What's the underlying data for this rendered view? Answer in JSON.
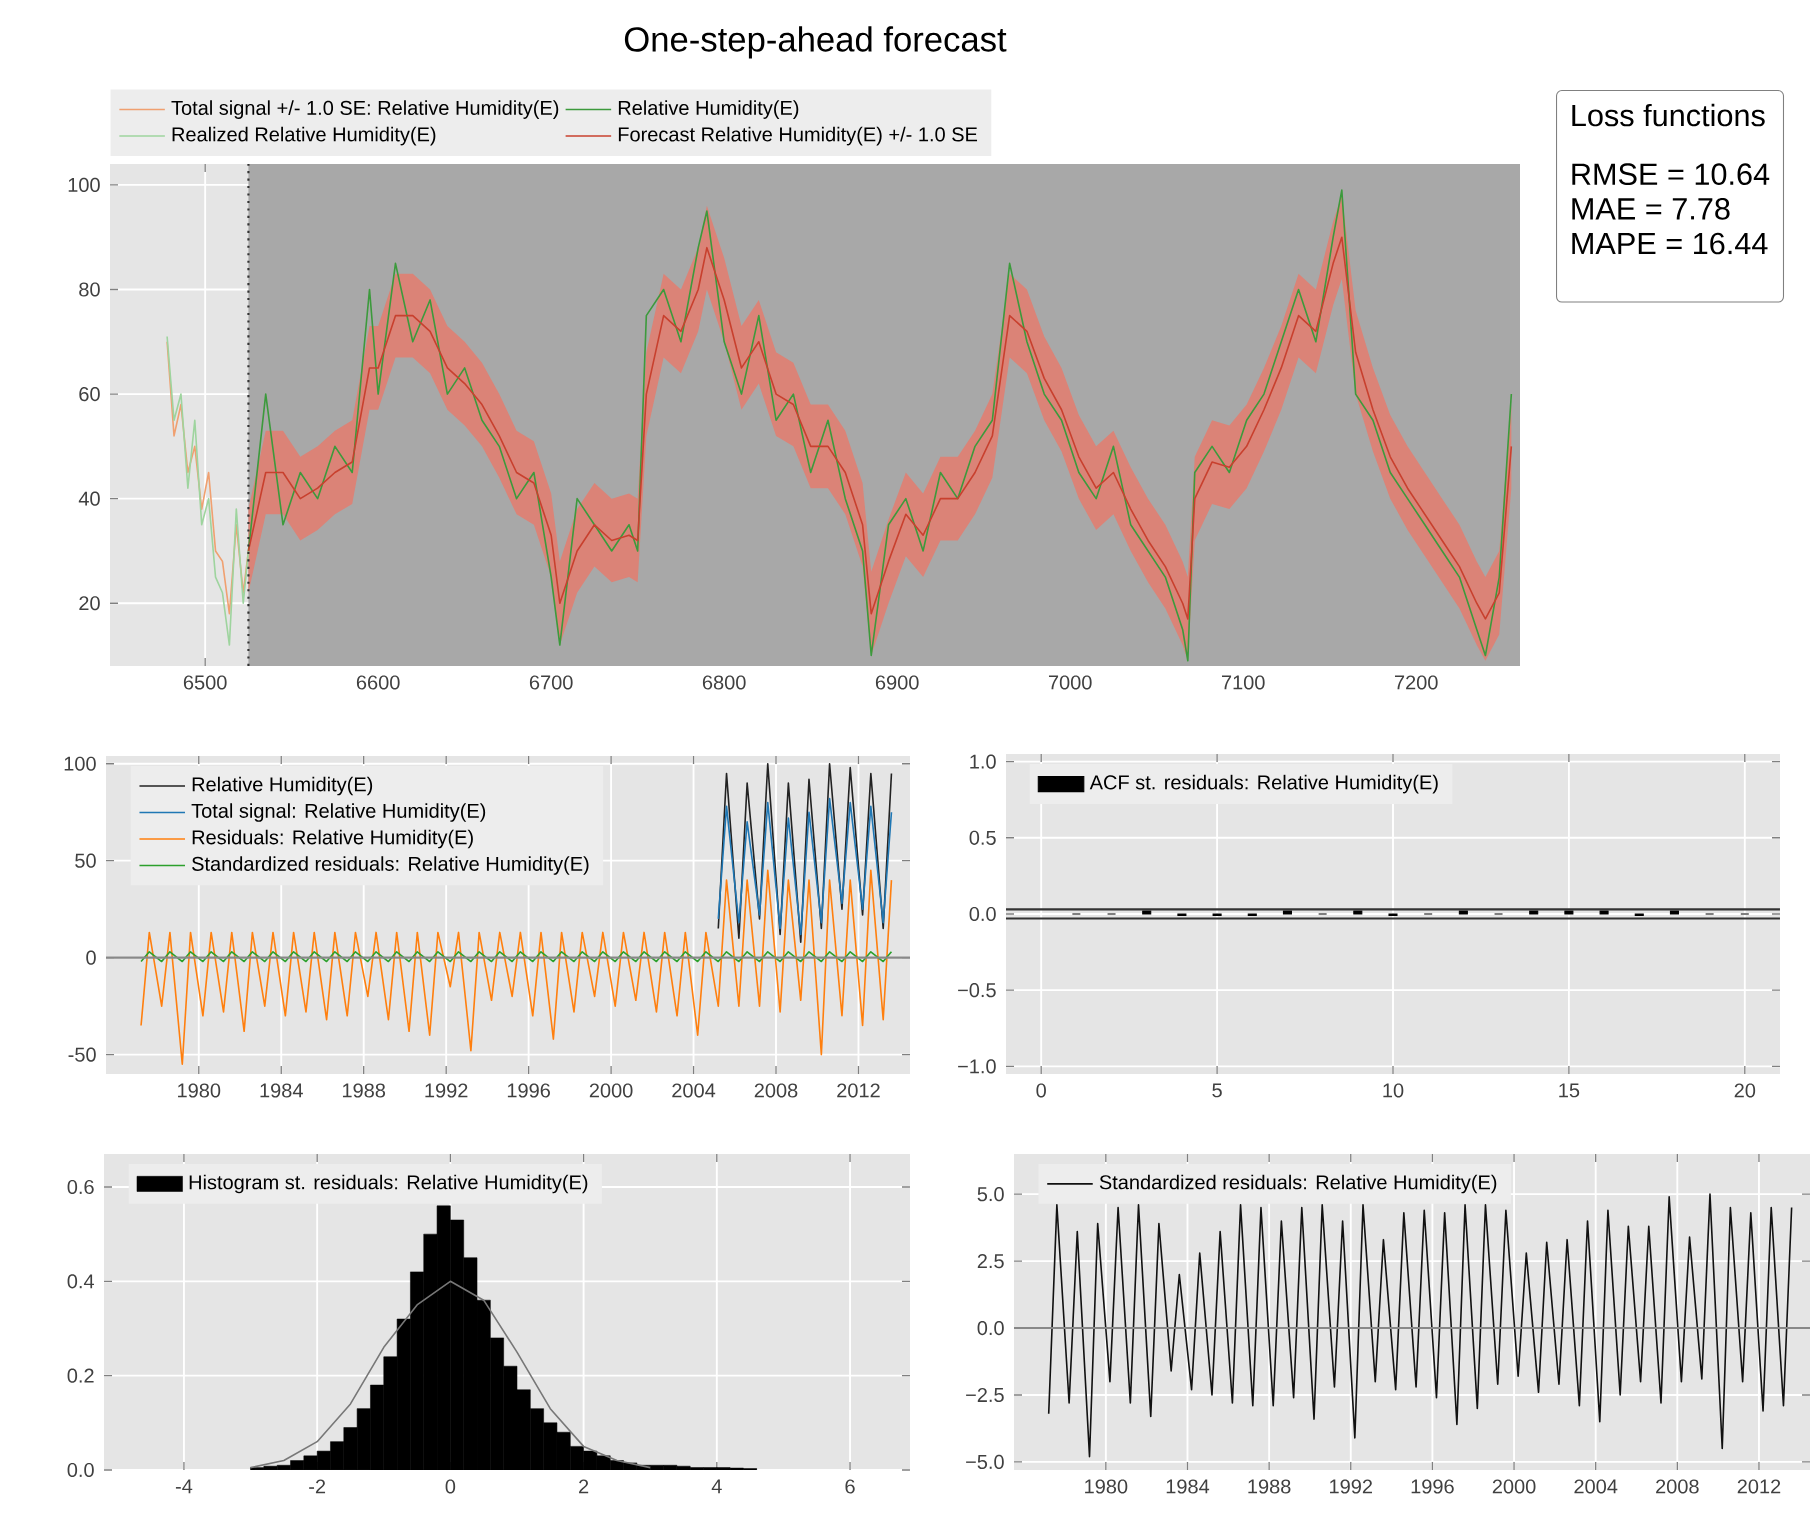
{
  "chart_data": [
    {
      "type": "line",
      "title": "One-step-ahead forecast",
      "xlim": [
        6445,
        7260
      ],
      "ylim": [
        8,
        104
      ],
      "xticks": [
        6500,
        6600,
        6700,
        6800,
        6900,
        7000,
        7100,
        7200
      ],
      "yticks": [
        20,
        40,
        60,
        80,
        100
      ],
      "grid": true,
      "legend": "top left",
      "bands": [
        {
          "axis": "x",
          "from": 6525,
          "to": 7260,
          "color": "#a8a8a8"
        }
      ],
      "ref_lines": [
        {
          "axis": "x",
          "value": 6525,
          "color": "#333333",
          "line_style": "dotted"
        }
      ],
      "series": [
        {
          "name": "Total signal +/- 1.0 SE: Relative Humidity(E)",
          "color": "#f0a070",
          "x": [
            6478,
            6482,
            6486,
            6490,
            6494,
            6498,
            6502,
            6506,
            6510,
            6514,
            6518,
            6522,
            6525
          ],
          "values": [
            70,
            52,
            58,
            45,
            50,
            38,
            45,
            30,
            28,
            18,
            35,
            22,
            30
          ]
        },
        {
          "name": "Relative Humidity(E)",
          "color": "#3c9a3c",
          "x": [
            6525,
            6535,
            6545,
            6555,
            6565,
            6575,
            6585,
            6595,
            6600,
            6610,
            6620,
            6630,
            6640,
            6650,
            6660,
            6670,
            6680,
            6690,
            6700,
            6705,
            6715,
            6725,
            6735,
            6745,
            6750,
            6755,
            6765,
            6775,
            6785,
            6790,
            6800,
            6810,
            6820,
            6830,
            6840,
            6850,
            6860,
            6870,
            6880,
            6885,
            6895,
            6905,
            6915,
            6925,
            6935,
            6945,
            6955,
            6965,
            6975,
            6985,
            6995,
            7005,
            7015,
            7025,
            7035,
            7045,
            7055,
            7065,
            7068,
            7072,
            7082,
            7092,
            7102,
            7112,
            7122,
            7132,
            7142,
            7152,
            7157,
            7165,
            7175,
            7185,
            7195,
            7205,
            7215,
            7225,
            7235,
            7240,
            7248,
            7255
          ],
          "values": [
            30,
            60,
            35,
            45,
            40,
            50,
            45,
            80,
            60,
            85,
            70,
            78,
            60,
            65,
            55,
            50,
            40,
            45,
            25,
            12,
            40,
            35,
            30,
            35,
            30,
            75,
            80,
            70,
            88,
            95,
            70,
            60,
            75,
            55,
            60,
            45,
            55,
            40,
            30,
            10,
            35,
            40,
            30,
            45,
            40,
            50,
            55,
            85,
            70,
            60,
            55,
            45,
            40,
            50,
            35,
            30,
            25,
            15,
            9,
            45,
            50,
            45,
            55,
            60,
            70,
            80,
            70,
            90,
            99,
            60,
            55,
            45,
            40,
            35,
            30,
            25,
            15,
            10,
            25,
            60
          ]
        },
        {
          "name": "Realized Relative Humidity(E)",
          "color": "#9ed49e",
          "x": [
            6478,
            6482,
            6486,
            6490,
            6494,
            6498,
            6502,
            6506,
            6510,
            6514,
            6518,
            6522,
            6525
          ],
          "values": [
            71,
            55,
            60,
            42,
            55,
            35,
            40,
            25,
            22,
            12,
            38,
            20,
            30
          ]
        },
        {
          "name": "Forecast Relative Humidity(E) +/- 1.0 SE",
          "color": "#c8402e",
          "x": [
            6525,
            6535,
            6545,
            6555,
            6565,
            6575,
            6585,
            6595,
            6600,
            6610,
            6620,
            6630,
            6640,
            6650,
            6660,
            6670,
            6680,
            6690,
            6700,
            6705,
            6715,
            6725,
            6735,
            6745,
            6750,
            6755,
            6765,
            6775,
            6785,
            6790,
            6800,
            6810,
            6820,
            6830,
            6840,
            6850,
            6860,
            6870,
            6880,
            6885,
            6895,
            6905,
            6915,
            6925,
            6935,
            6945,
            6955,
            6965,
            6975,
            6985,
            6995,
            7005,
            7015,
            7025,
            7035,
            7045,
            7055,
            7065,
            7068,
            7072,
            7082,
            7092,
            7102,
            7112,
            7122,
            7132,
            7142,
            7152,
            7157,
            7165,
            7175,
            7185,
            7195,
            7205,
            7215,
            7225,
            7235,
            7240,
            7248,
            7255
          ],
          "values": [
            30,
            45,
            45,
            40,
            42,
            45,
            47,
            65,
            65,
            75,
            75,
            72,
            65,
            62,
            58,
            52,
            45,
            43,
            33,
            20,
            30,
            35,
            32,
            33,
            32,
            60,
            75,
            72,
            80,
            88,
            78,
            65,
            70,
            60,
            58,
            50,
            50,
            45,
            35,
            18,
            28,
            37,
            33,
            40,
            40,
            45,
            52,
            75,
            72,
            63,
            57,
            48,
            42,
            45,
            38,
            32,
            27,
            20,
            17,
            40,
            47,
            46,
            50,
            57,
            65,
            75,
            72,
            85,
            90,
            68,
            57,
            48,
            42,
            37,
            32,
            27,
            20,
            17,
            22,
            50
          ],
          "lower": [
            22,
            37,
            37,
            32,
            34,
            37,
            39,
            57,
            57,
            67,
            67,
            64,
            57,
            54,
            50,
            44,
            37,
            35,
            25,
            12,
            22,
            27,
            24,
            25,
            24,
            52,
            67,
            64,
            72,
            80,
            70,
            57,
            62,
            52,
            50,
            42,
            42,
            37,
            27,
            10,
            20,
            29,
            25,
            32,
            32,
            37,
            44,
            67,
            64,
            55,
            49,
            40,
            34,
            37,
            30,
            24,
            19,
            12,
            9,
            32,
            39,
            38,
            42,
            49,
            57,
            67,
            64,
            77,
            82,
            60,
            49,
            40,
            34,
            29,
            24,
            19,
            12,
            9,
            14,
            42
          ],
          "upper": [
            38,
            53,
            53,
            48,
            50,
            53,
            55,
            73,
            73,
            83,
            83,
            80,
            73,
            70,
            66,
            60,
            53,
            51,
            41,
            28,
            38,
            43,
            40,
            41,
            40,
            68,
            83,
            80,
            88,
            96,
            86,
            73,
            78,
            68,
            66,
            58,
            58,
            53,
            43,
            26,
            36,
            45,
            41,
            48,
            48,
            53,
            60,
            83,
            80,
            71,
            65,
            56,
            50,
            53,
            46,
            40,
            35,
            28,
            25,
            48,
            55,
            54,
            58,
            65,
            73,
            83,
            80,
            93,
            98,
            76,
            65,
            56,
            50,
            45,
            40,
            35,
            28,
            25,
            30,
            58
          ]
        }
      ]
    },
    {
      "type": "other",
      "title": "Loss functions",
      "annotations": [
        "RMSE = 10.64",
        "MAE = 7.78",
        "MAPE = 16.44"
      ]
    },
    {
      "type": "line",
      "xlim": [
        1975.5,
        2014.5
      ],
      "ylim": [
        -60,
        104
      ],
      "xticks": [
        1980,
        1984,
        1988,
        1992,
        1996,
        2000,
        2004,
        2008,
        2012
      ],
      "yticks": [
        -50,
        0,
        50,
        100
      ],
      "grid": true,
      "legend": "top left",
      "ref_lines": [
        {
          "axis": "y",
          "value": 0,
          "color": "#888888"
        }
      ],
      "x": [
        1977.2,
        1977.6,
        1978.2,
        1978.6,
        1979.2,
        1979.6,
        1980.2,
        1980.6,
        1981.2,
        1981.6,
        1982.2,
        1982.6,
        1983.2,
        1983.6,
        1984.2,
        1984.6,
        1985.2,
        1985.6,
        1986.2,
        1986.6,
        1987.2,
        1987.6,
        1988.2,
        1988.6,
        1989.2,
        1989.6,
        1990.2,
        1990.6,
        1991.2,
        1991.6,
        1992.2,
        1992.6,
        1993.2,
        1993.6,
        1994.2,
        1994.6,
        1995.2,
        1995.6,
        1996.2,
        1996.6,
        1997.2,
        1997.6,
        1998.2,
        1998.6,
        1999.2,
        1999.6,
        2000.2,
        2000.6,
        2001.2,
        2001.6,
        2002.2,
        2002.6,
        2003.2,
        2003.6,
        2004.2,
        2004.6,
        2005.2,
        2005.6,
        2006.2,
        2006.6,
        2007.2,
        2007.6,
        2008.2,
        2008.6,
        2009.2,
        2009.6,
        2010.2,
        2010.6,
        2011.2,
        2011.6,
        2012.2,
        2012.6,
        2013.2,
        2013.6
      ],
      "series": [
        {
          "name": "Relative Humidity(E)",
          "color": "#222222",
          "x": [
            2005.2,
            2005.6,
            2006.2,
            2006.6,
            2007.2,
            2007.6,
            2008.2,
            2008.6,
            2009.2,
            2009.6,
            2010.2,
            2010.6,
            2011.2,
            2011.6,
            2012.2,
            2012.6,
            2013.2,
            2013.6
          ],
          "values": [
            15,
            95,
            10,
            90,
            20,
            100,
            12,
            90,
            8,
            92,
            15,
            100,
            25,
            98,
            22,
            95,
            15,
            95
          ]
        },
        {
          "name": "Total signal: Relative Humidity(E)",
          "color": "#1f77b4",
          "x": [
            2005.2,
            2005.6,
            2006.2,
            2006.6,
            2007.2,
            2007.6,
            2008.2,
            2008.6,
            2009.2,
            2009.6,
            2010.2,
            2010.6,
            2011.2,
            2011.6,
            2012.2,
            2012.6,
            2013.2,
            2013.6
          ],
          "values": [
            20,
            78,
            18,
            70,
            22,
            80,
            15,
            72,
            12,
            75,
            18,
            82,
            28,
            80,
            25,
            78,
            18,
            75
          ]
        },
        {
          "name": "Residuals: Relative Humidity(E)",
          "color": "#ff7f0e",
          "values": [
            -35,
            13,
            -25,
            13,
            -55,
            13,
            -30,
            13,
            -28,
            13,
            -38,
            13,
            -25,
            13,
            -30,
            13,
            -28,
            13,
            -32,
            13,
            -30,
            13,
            -20,
            13,
            -32,
            13,
            -38,
            13,
            -40,
            13,
            -15,
            13,
            -48,
            13,
            -22,
            13,
            -20,
            13,
            -30,
            13,
            -42,
            13,
            -28,
            13,
            -20,
            13,
            -25,
            13,
            -22,
            13,
            -28,
            13,
            -30,
            13,
            -40,
            13,
            -25,
            40,
            -25,
            40,
            -25,
            45,
            -28,
            40,
            -22,
            40,
            -50,
            40,
            -30,
            40,
            -35,
            45,
            -32,
            40
          ]
        },
        {
          "name": "Standardized residuals: Relative Humidity(E)",
          "color": "#2ca02c",
          "values": [
            -2,
            3,
            -2,
            3,
            -2,
            3,
            -2,
            3,
            -2,
            3,
            -2,
            3,
            -2,
            3,
            -2,
            3,
            -2,
            3,
            -2,
            3,
            -2,
            3,
            -2,
            3,
            -2,
            3,
            -2,
            3,
            -2,
            3,
            -2,
            3,
            -2,
            3,
            -2,
            3,
            -2,
            3,
            -2,
            3,
            -2,
            3,
            -2,
            3,
            -2,
            3,
            -2,
            3,
            -2,
            3,
            -2,
            3,
            -2,
            3,
            -2,
            3,
            -2,
            3,
            -2,
            3,
            -2,
            3,
            -2,
            3,
            -2,
            3,
            -2,
            3,
            -2,
            3,
            -2,
            3,
            -2,
            3
          ]
        }
      ]
    },
    {
      "type": "bar",
      "xlim": [
        -1,
        21
      ],
      "ylim": [
        -1.05,
        1.05
      ],
      "xticks": [
        0,
        5,
        10,
        15,
        20
      ],
      "yticks": [
        {
          "value": -1,
          "label": "−1.0"
        },
        {
          "value": -0.5,
          "label": "−0.5"
        },
        {
          "value": 0,
          "label": "0.0"
        },
        {
          "value": 0.5,
          "label": "0.5"
        },
        {
          "value": 1,
          "label": "1.0"
        }
      ],
      "grid": true,
      "legend": "top left",
      "ref_lines": [
        {
          "axis": "y",
          "value": 0.03,
          "color": "#333333"
        },
        {
          "axis": "y",
          "value": -0.03,
          "color": "#333333"
        }
      ],
      "series": [
        {
          "name": "ACF st. residuals: Relative Humidity(E)",
          "color": "#000000",
          "x": [
            1,
            2,
            3,
            4,
            5,
            6,
            7,
            8,
            9,
            10,
            11,
            12,
            13,
            14,
            15,
            16,
            17,
            18,
            19,
            20
          ],
          "values": [
            0,
            0,
            0.02,
            -0.01,
            -0.01,
            -0.01,
            0.02,
            0,
            0.02,
            -0.01,
            0,
            0.02,
            0,
            0.02,
            0.02,
            0.02,
            -0.01,
            0.02,
            0,
            0
          ]
        }
      ]
    },
    {
      "type": "histogram",
      "xlim": [
        -5.2,
        6.9
      ],
      "ylim": [
        0,
        0.67
      ],
      "xticks": [
        -4,
        -2,
        0,
        2,
        4,
        6
      ],
      "yticks": [
        {
          "value": 0,
          "label": "0.0"
        },
        {
          "value": 0.2,
          "label": "0.2"
        },
        {
          "value": 0.4,
          "label": "0.4"
        },
        {
          "value": 0.6,
          "label": "0.6"
        }
      ],
      "grid": true,
      "legend": "top left",
      "series": [
        {
          "name": "Histogram st. residuals: Relative Humidity(E)",
          "color": "#000000",
          "bins": [
            -3.0,
            -2.8,
            -2.6,
            -2.4,
            -2.2,
            -2.0,
            -1.8,
            -1.6,
            -1.4,
            -1.2,
            -1.0,
            -0.8,
            -0.6,
            -0.4,
            -0.2,
            0.0,
            0.2,
            0.4,
            0.6,
            0.8,
            1.0,
            1.2,
            1.4,
            1.6,
            1.8,
            2.0,
            2.2,
            2.4,
            2.6,
            2.8,
            3.0,
            3.2,
            3.4,
            3.6,
            3.8,
            4.0,
            4.2,
            4.4,
            4.6
          ],
          "values": [
            0.005,
            0.008,
            0.01,
            0.02,
            0.03,
            0.04,
            0.06,
            0.09,
            0.13,
            0.18,
            0.24,
            0.32,
            0.42,
            0.5,
            0.56,
            0.53,
            0.45,
            0.36,
            0.28,
            0.22,
            0.17,
            0.13,
            0.1,
            0.08,
            0.05,
            0.04,
            0.03,
            0.02,
            0.015,
            0.01,
            0.01,
            0.01,
            0.008,
            0.005,
            0.005,
            0.005,
            0.004,
            0.003
          ]
        },
        {
          "type": "line",
          "color": "#777777",
          "x": [
            -3,
            -2.5,
            -2,
            -1.5,
            -1,
            -0.5,
            0,
            0.5,
            1,
            1.5,
            2,
            2.5,
            3
          ],
          "values": [
            0.005,
            0.02,
            0.06,
            0.14,
            0.26,
            0.35,
            0.4,
            0.36,
            0.25,
            0.13,
            0.05,
            0.02,
            0.005
          ]
        }
      ]
    },
    {
      "type": "line",
      "xlim": [
        1975.5,
        2014.5
      ],
      "ylim": [
        -5.3,
        6.5
      ],
      "xticks": [
        1980,
        1984,
        1988,
        1992,
        1996,
        2000,
        2004,
        2008,
        2012
      ],
      "yticks": [
        {
          "value": -5,
          "label": "−5.0"
        },
        {
          "value": -2.5,
          "label": "−2.5"
        },
        {
          "value": 0,
          "label": "0.0"
        },
        {
          "value": 2.5,
          "label": "2.5"
        },
        {
          "value": 5,
          "label": "5.0"
        }
      ],
      "grid": true,
      "legend": "top left",
      "ref_lines": [
        {
          "axis": "y",
          "value": 0,
          "color": "#888888"
        }
      ],
      "x": [
        1977.2,
        1977.6,
        1978.2,
        1978.6,
        1979.2,
        1979.6,
        1980.2,
        1980.6,
        1981.2,
        1981.6,
        1982.2,
        1982.6,
        1983.2,
        1983.6,
        1984.2,
        1984.6,
        1985.2,
        1985.6,
        1986.2,
        1986.6,
        1987.2,
        1987.6,
        1988.2,
        1988.6,
        1989.2,
        1989.6,
        1990.2,
        1990.6,
        1991.2,
        1991.6,
        1992.2,
        1992.6,
        1993.2,
        1993.6,
        1994.2,
        1994.6,
        1995.2,
        1995.6,
        1996.2,
        1996.6,
        1997.2,
        1997.6,
        1998.2,
        1998.6,
        1999.2,
        1999.6,
        2000.2,
        2000.6,
        2001.2,
        2001.6,
        2002.2,
        2002.6,
        2003.2,
        2003.6,
        2004.2,
        2004.6,
        2005.2,
        2005.6,
        2006.2,
        2006.6,
        2007.2,
        2007.6,
        2008.2,
        2008.6,
        2009.2,
        2009.6,
        2010.2,
        2010.6,
        2011.2,
        2011.6,
        2012.2,
        2012.6,
        2013.2,
        2013.6
      ],
      "series": [
        {
          "name": "Standardized residuals: Relative Humidity(E)",
          "color": "#111111",
          "values": [
            -3.2,
            4.6,
            -2.8,
            3.6,
            -4.8,
            3.9,
            -2.0,
            4.5,
            -2.8,
            4.6,
            -3.3,
            3.9,
            -1.6,
            2.0,
            -2.3,
            2.8,
            -2.5,
            3.6,
            -2.8,
            4.6,
            -2.9,
            4.5,
            -2.9,
            4.0,
            -2.6,
            4.5,
            -3.4,
            4.6,
            -2.2,
            4.0,
            -4.1,
            4.6,
            -2.0,
            3.3,
            -2.3,
            4.3,
            -2.2,
            4.4,
            -2.6,
            4.3,
            -3.6,
            4.6,
            -3.0,
            4.6,
            -2.1,
            4.4,
            -1.8,
            2.8,
            -2.4,
            3.2,
            -2.1,
            3.3,
            -2.9,
            4.0,
            -3.5,
            4.4,
            -2.5,
            3.8,
            -2.0,
            3.8,
            -2.8,
            4.9,
            -2.0,
            3.4,
            -1.9,
            5.0,
            -4.5,
            4.5,
            -2.0,
            4.3,
            -3.1,
            4.5,
            -2.9,
            4.5
          ]
        }
      ]
    }
  ]
}
